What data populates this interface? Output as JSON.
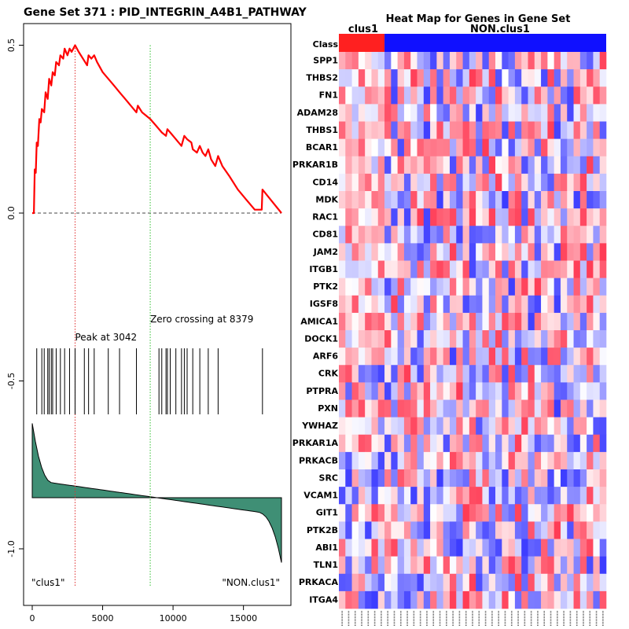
{
  "chart_data": [
    {
      "type": "line",
      "title": "Gene Set  371 : PID_INTEGRIN_A4B1_PATHWAY",
      "ylim": [
        -1.1,
        0.55
      ],
      "xlim": [
        0,
        17800
      ],
      "x_ticks": [
        "0",
        "5000",
        "10000",
        "15000"
      ],
      "x_tick_values": [
        0,
        5000,
        10000,
        15000
      ],
      "y_ticks": [
        "-1.0",
        "-0.5",
        "0.0",
        "0.5"
      ],
      "y_tick_values": [
        -1.0,
        -0.5,
        0.0,
        0.5
      ],
      "peak_label": "Peak at 3042",
      "peak_x": 3042,
      "zero_label": "Zero crossing at 8379",
      "zero_x": 8379,
      "left_label": "\"clus1\"",
      "right_label": "\"NON.clus1\"",
      "running_es": [
        [
          0,
          0
        ],
        [
          120,
          0
        ],
        [
          180,
          0.13
        ],
        [
          250,
          0.12
        ],
        [
          320,
          0.21
        ],
        [
          400,
          0.2
        ],
        [
          500,
          0.28
        ],
        [
          600,
          0.27
        ],
        [
          680,
          0.31
        ],
        [
          850,
          0.3
        ],
        [
          950,
          0.36
        ],
        [
          1100,
          0.34
        ],
        [
          1200,
          0.4
        ],
        [
          1350,
          0.38
        ],
        [
          1450,
          0.42
        ],
        [
          1600,
          0.41
        ],
        [
          1700,
          0.45
        ],
        [
          1900,
          0.44
        ],
        [
          2000,
          0.47
        ],
        [
          2200,
          0.46
        ],
        [
          2300,
          0.49
        ],
        [
          2500,
          0.47
        ],
        [
          2650,
          0.49
        ],
        [
          2800,
          0.48
        ],
        [
          3042,
          0.5
        ],
        [
          3300,
          0.48
        ],
        [
          3600,
          0.46
        ],
        [
          3900,
          0.44
        ],
        [
          4000,
          0.47
        ],
        [
          4200,
          0.46
        ],
        [
          4400,
          0.47
        ],
        [
          4600,
          0.45
        ],
        [
          5000,
          0.42
        ],
        [
          5400,
          0.4
        ],
        [
          5800,
          0.38
        ],
        [
          6200,
          0.36
        ],
        [
          6600,
          0.34
        ],
        [
          7000,
          0.32
        ],
        [
          7400,
          0.3
        ],
        [
          7500,
          0.32
        ],
        [
          7800,
          0.3
        ],
        [
          8379,
          0.28
        ],
        [
          8800,
          0.26
        ],
        [
          9200,
          0.24
        ],
        [
          9500,
          0.23
        ],
        [
          9600,
          0.25
        ],
        [
          9800,
          0.24
        ],
        [
          10200,
          0.22
        ],
        [
          10600,
          0.2
        ],
        [
          10800,
          0.23
        ],
        [
          11000,
          0.22
        ],
        [
          11300,
          0.21
        ],
        [
          11400,
          0.19
        ],
        [
          11700,
          0.18
        ],
        [
          11900,
          0.2
        ],
        [
          12100,
          0.18
        ],
        [
          12300,
          0.17
        ],
        [
          12500,
          0.19
        ],
        [
          12700,
          0.16
        ],
        [
          13000,
          0.14
        ],
        [
          13200,
          0.17
        ],
        [
          13500,
          0.14
        ],
        [
          14000,
          0.11
        ],
        [
          14600,
          0.07
        ],
        [
          15200,
          0.04
        ],
        [
          15800,
          0.01
        ],
        [
          16300,
          0.01
        ],
        [
          16350,
          0.07
        ],
        [
          17700,
          0.0
        ]
      ],
      "hits": [
        320,
        680,
        850,
        1100,
        1200,
        1350,
        1450,
        1700,
        2000,
        2300,
        2650,
        3042,
        3700,
        4000,
        4400,
        5400,
        6200,
        7400,
        9000,
        9200,
        9500,
        9600,
        9800,
        10200,
        10600,
        10800,
        11000,
        11400,
        11900,
        12500,
        13200,
        16350
      ]
    },
    {
      "type": "heatmap",
      "title": "Heat Map for Genes in Gene Set",
      "class_row_label": "Class",
      "classes": [
        {
          "name": "clus1",
          "count": 7,
          "color": "#ff2020"
        },
        {
          "name": "NON.clus1",
          "count": 34,
          "color": "#1010ff"
        }
      ],
      "genes": [
        "SPP1",
        "THBS2",
        "FN1",
        "ADAM28",
        "THBS1",
        "BCAR1",
        "PRKAR1B",
        "CD14",
        "MDK",
        "RAC1",
        "CD81",
        "JAM2",
        "ITGB1",
        "PTK2",
        "IGSF8",
        "AMICA1",
        "DOCK1",
        "ARF6",
        "CRK",
        "PTPRA",
        "PXN",
        "YWHAZ",
        "PRKAR1A",
        "PRKACB",
        "SRC",
        "VCAM1",
        "GIT1",
        "PTK2B",
        "ABI1",
        "TLN1",
        "PRKACA",
        "ITGA4"
      ],
      "columns": 41,
      "cell_seed": 371
    }
  ]
}
